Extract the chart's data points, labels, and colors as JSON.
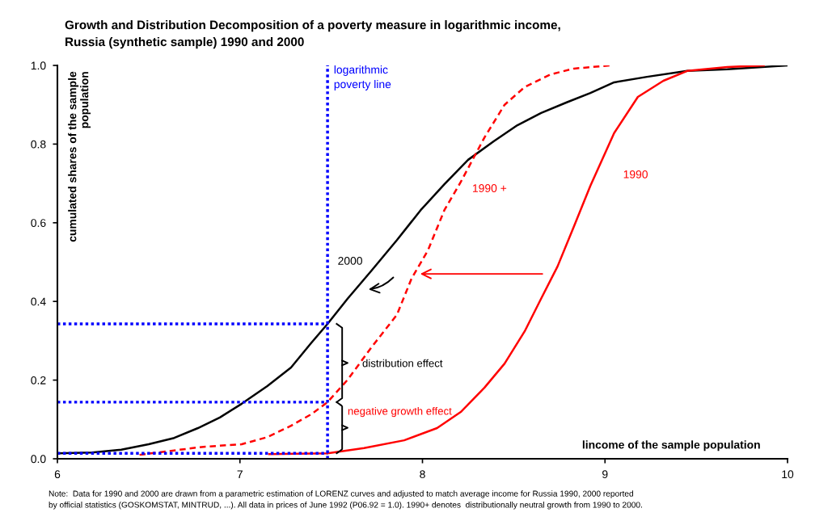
{
  "chart_data": {
    "type": "line",
    "title": "Growth and Distribution Decomposition of a poverty measure in logarithmic income,\nRussia (synthetic sample) 1990 and 2000",
    "xlabel": "lincome of the sample population",
    "ylabel": "cumulated shares of the sample\npopulation",
    "xlim": [
      6,
      10
    ],
    "xticks": [
      6,
      7,
      8,
      9,
      10
    ],
    "ylim": [
      0,
      1
    ],
    "yticks": [
      {
        "value": 0,
        "label": "0.0"
      },
      {
        "value": 0.2,
        "label": "0.2"
      },
      {
        "value": 0.4,
        "label": "0.4"
      },
      {
        "value": 0.6,
        "label": "0.6"
      },
      {
        "value": 0.8,
        "label": "0.8"
      },
      {
        "value": 1,
        "label": "1.0"
      }
    ],
    "grid": false,
    "legend": false,
    "marker": "none",
    "series": [
      {
        "name": "2000",
        "color": "#000000",
        "line_style": "solid",
        "x": [
          6,
          6.19,
          6.35,
          6.5,
          6.64,
          6.77,
          6.89,
          7.01,
          7.15,
          7.28,
          7.39,
          7.48,
          7.59,
          7.72,
          7.86,
          7.99,
          8.12,
          8.25,
          8.39,
          8.52,
          8.65,
          8.79,
          8.92,
          9.05,
          9.23,
          9.45,
          9.67,
          10
        ],
        "values": [
          0.014,
          0.016,
          0.023,
          0.037,
          0.053,
          0.078,
          0.105,
          0.14,
          0.185,
          0.232,
          0.294,
          0.343,
          0.407,
          0.478,
          0.556,
          0.632,
          0.698,
          0.76,
          0.807,
          0.848,
          0.879,
          0.906,
          0.93,
          0.957,
          0.971,
          0.986,
          0.99,
          1.0
        ]
      },
      {
        "name": "1990 +",
        "color": "#ff0000",
        "line_style": "dashed",
        "x": [
          6.45,
          6.79,
          7.01,
          7.15,
          7.28,
          7.39,
          7.48,
          7.59,
          7.72,
          7.86,
          7.94,
          8.03,
          8.12,
          8.21,
          8.34,
          8.45,
          8.56,
          8.7,
          8.83,
          9.03
        ],
        "values": [
          0.01,
          0.03,
          0.037,
          0.055,
          0.084,
          0.113,
          0.144,
          0.201,
          0.283,
          0.366,
          0.458,
          0.53,
          0.632,
          0.704,
          0.817,
          0.9,
          0.945,
          0.977,
          0.992,
          1.0
        ]
      },
      {
        "name": "1990",
        "color": "#ff0000",
        "line_style": "solid",
        "x": [
          7.16,
          7.48,
          7.68,
          7.9,
          8.08,
          8.21,
          8.34,
          8.45,
          8.56,
          8.65,
          8.74,
          8.83,
          8.92,
          9.05,
          9.18,
          9.32,
          9.45,
          9.67,
          9.87
        ],
        "values": [
          0.012,
          0.014,
          0.027,
          0.047,
          0.078,
          0.119,
          0.181,
          0.242,
          0.324,
          0.407,
          0.489,
          0.591,
          0.694,
          0.828,
          0.92,
          0.961,
          0.986,
          0.996,
          1.0
        ]
      }
    ],
    "ref_lines": [
      {
        "axis": "x",
        "value": 7.48,
        "label": "logarithmic\npoverty line",
        "color": "#0000ff",
        "line_style": "dotted"
      },
      {
        "axis": "y",
        "value": 0.343,
        "color": "#0000ff",
        "line_style": "dotted"
      },
      {
        "axis": "y",
        "value": 0.144,
        "color": "#0000ff",
        "line_style": "dotted"
      },
      {
        "axis": "y",
        "value": 0.014,
        "color": "#0000ff",
        "line_style": "dotted"
      }
    ],
    "annotations": [
      "distribution effect",
      "negative growth effect",
      "Note:  Data for 1990 and 2000 are drawn from a parametric estimation of LORENZ curves and adjusted to match average income for Russia 1990, 2000 reported\nby official statistics (GOSKOMSTAT, MINTRUD, ...). All data in prices of June 1992 (P06.92 = 1.0). 1990+ denotes  distributionally neutral growth from 1990 to 2000."
    ]
  }
}
